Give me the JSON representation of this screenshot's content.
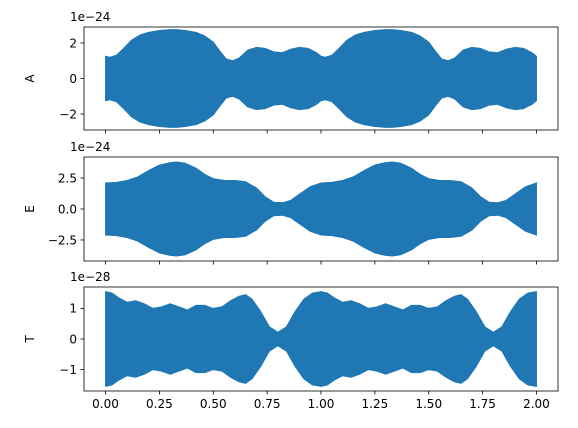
{
  "chart_data": [
    {
      "type": "area",
      "ylabel": "A",
      "offset_text": "1e−24",
      "xlim": [
        -0.1,
        2.1
      ],
      "ylim": [
        -2.9,
        2.9
      ],
      "x_ticks": [
        0.0,
        0.25,
        0.5,
        0.75,
        1.0,
        1.25,
        1.5,
        1.75,
        2.0
      ],
      "x_tick_labels": [],
      "y_ticks": [
        -2,
        0,
        2
      ],
      "y_tick_labels": [
        "−2",
        "0",
        "2"
      ],
      "fill_color": "#1f77b4",
      "envelope": {
        "x": [
          0.0,
          0.02,
          0.05,
          0.08,
          0.12,
          0.16,
          0.2,
          0.25,
          0.3,
          0.33,
          0.37,
          0.42,
          0.46,
          0.5,
          0.53,
          0.56,
          0.59,
          0.62,
          0.66,
          0.7,
          0.74,
          0.78,
          0.82,
          0.86,
          0.9,
          0.94,
          0.98,
          1.0,
          1.02,
          1.05,
          1.08,
          1.12,
          1.16,
          1.2,
          1.25,
          1.3,
          1.33,
          1.37,
          1.42,
          1.46,
          1.5,
          1.53,
          1.56,
          1.59,
          1.62,
          1.66,
          1.7,
          1.74,
          1.78,
          1.82,
          1.86,
          1.9,
          1.94,
          1.98,
          2.0
        ],
        "upper": [
          1.25,
          1.2,
          1.3,
          1.65,
          2.15,
          2.45,
          2.6,
          2.7,
          2.75,
          2.75,
          2.7,
          2.6,
          2.4,
          2.05,
          1.55,
          1.1,
          1.0,
          1.15,
          1.6,
          1.75,
          1.7,
          1.5,
          1.45,
          1.65,
          1.75,
          1.7,
          1.45,
          1.25,
          1.2,
          1.3,
          1.65,
          2.15,
          2.45,
          2.6,
          2.7,
          2.75,
          2.75,
          2.7,
          2.6,
          2.4,
          2.05,
          1.55,
          1.1,
          1.0,
          1.15,
          1.6,
          1.75,
          1.7,
          1.5,
          1.45,
          1.65,
          1.75,
          1.7,
          1.45,
          1.25
        ],
        "lower": [
          -1.25,
          -1.2,
          -1.3,
          -1.65,
          -2.15,
          -2.45,
          -2.6,
          -2.7,
          -2.75,
          -2.75,
          -2.7,
          -2.6,
          -2.4,
          -2.05,
          -1.55,
          -1.1,
          -1.0,
          -1.15,
          -1.6,
          -1.75,
          -1.7,
          -1.5,
          -1.45,
          -1.65,
          -1.75,
          -1.7,
          -1.45,
          -1.25,
          -1.2,
          -1.3,
          -1.65,
          -2.15,
          -2.45,
          -2.6,
          -2.7,
          -2.75,
          -2.75,
          -2.7,
          -2.6,
          -2.4,
          -2.05,
          -1.55,
          -1.1,
          -1.0,
          -1.15,
          -1.6,
          -1.75,
          -1.7,
          -1.5,
          -1.45,
          -1.65,
          -1.75,
          -1.7,
          -1.45,
          -1.25
        ]
      }
    },
    {
      "type": "area",
      "ylabel": "E",
      "offset_text": "1e−24",
      "xlim": [
        -0.1,
        2.1
      ],
      "ylim": [
        -4.2,
        4.2
      ],
      "x_ticks": [
        0.0,
        0.25,
        0.5,
        0.75,
        1.0,
        1.25,
        1.5,
        1.75,
        2.0
      ],
      "x_tick_labels": [],
      "y_ticks": [
        -2.5,
        0.0,
        2.5
      ],
      "y_tick_labels": [
        "−2.5",
        "0.0",
        "2.5"
      ],
      "fill_color": "#1f77b4",
      "envelope": {
        "x": [
          0.0,
          0.05,
          0.1,
          0.15,
          0.2,
          0.25,
          0.3,
          0.33,
          0.37,
          0.42,
          0.46,
          0.5,
          0.55,
          0.6,
          0.65,
          0.7,
          0.74,
          0.78,
          0.82,
          0.86,
          0.9,
          0.95,
          1.0,
          1.05,
          1.1,
          1.15,
          1.2,
          1.25,
          1.3,
          1.33,
          1.37,
          1.42,
          1.46,
          1.5,
          1.55,
          1.6,
          1.65,
          1.7,
          1.74,
          1.78,
          1.82,
          1.86,
          1.9,
          1.95,
          2.0
        ],
        "upper": [
          2.1,
          2.15,
          2.3,
          2.6,
          3.1,
          3.55,
          3.75,
          3.8,
          3.7,
          3.3,
          2.8,
          2.45,
          2.3,
          2.3,
          2.2,
          1.7,
          1.0,
          0.55,
          0.5,
          0.7,
          1.2,
          1.8,
          2.1,
          2.15,
          2.3,
          2.6,
          3.1,
          3.55,
          3.75,
          3.8,
          3.7,
          3.3,
          2.8,
          2.45,
          2.3,
          2.3,
          2.2,
          1.7,
          1.0,
          0.55,
          0.5,
          0.7,
          1.2,
          1.8,
          2.1
        ],
        "lower": [
          -2.1,
          -2.15,
          -2.3,
          -2.6,
          -3.1,
          -3.55,
          -3.75,
          -3.8,
          -3.7,
          -3.3,
          -2.8,
          -2.45,
          -2.3,
          -2.3,
          -2.2,
          -1.7,
          -1.0,
          -0.55,
          -0.5,
          -0.7,
          -1.2,
          -1.8,
          -2.1,
          -2.15,
          -2.3,
          -2.6,
          -3.1,
          -3.55,
          -3.75,
          -3.8,
          -3.7,
          -3.3,
          -2.8,
          -2.45,
          -2.3,
          -2.3,
          -2.2,
          -1.7,
          -1.0,
          -0.55,
          -0.5,
          -0.7,
          -1.2,
          -1.8,
          -2.1
        ]
      }
    },
    {
      "type": "area",
      "ylabel": "T",
      "offset_text": "1e−28",
      "xlim": [
        -0.1,
        2.1
      ],
      "ylim": [
        -1.7,
        1.7
      ],
      "x_ticks": [
        0.0,
        0.25,
        0.5,
        0.75,
        1.0,
        1.25,
        1.5,
        1.75,
        2.0
      ],
      "x_tick_labels": [
        "0.00",
        "0.25",
        "0.50",
        "0.75",
        "1.00",
        "1.25",
        "1.50",
        "1.75",
        "2.00"
      ],
      "y_ticks": [
        -1,
        0,
        1
      ],
      "y_tick_labels": [
        "−1",
        "0",
        "1"
      ],
      "fill_color": "#1f77b4",
      "envelope": {
        "x": [
          0.0,
          0.03,
          0.06,
          0.1,
          0.14,
          0.18,
          0.22,
          0.26,
          0.3,
          0.34,
          0.38,
          0.42,
          0.46,
          0.5,
          0.54,
          0.58,
          0.62,
          0.65,
          0.68,
          0.72,
          0.76,
          0.8,
          0.84,
          0.88,
          0.92,
          0.96,
          1.0,
          1.03,
          1.06,
          1.1,
          1.14,
          1.18,
          1.22,
          1.26,
          1.3,
          1.34,
          1.38,
          1.42,
          1.46,
          1.5,
          1.54,
          1.58,
          1.62,
          1.65,
          1.68,
          1.72,
          1.76,
          1.8,
          1.84,
          1.88,
          1.92,
          1.96,
          2.0
        ],
        "upper": [
          1.55,
          1.5,
          1.35,
          1.2,
          1.25,
          1.15,
          1.0,
          1.05,
          1.15,
          1.05,
          0.95,
          1.1,
          1.1,
          1.0,
          1.05,
          1.25,
          1.4,
          1.45,
          1.3,
          0.9,
          0.4,
          0.22,
          0.4,
          0.9,
          1.3,
          1.5,
          1.55,
          1.5,
          1.35,
          1.2,
          1.25,
          1.15,
          1.0,
          1.05,
          1.15,
          1.05,
          0.95,
          1.1,
          1.1,
          1.0,
          1.05,
          1.25,
          1.4,
          1.45,
          1.3,
          0.9,
          0.4,
          0.22,
          0.4,
          0.9,
          1.3,
          1.5,
          1.55
        ],
        "lower": [
          -1.55,
          -1.5,
          -1.35,
          -1.2,
          -1.25,
          -1.15,
          -1.0,
          -1.05,
          -1.15,
          -1.05,
          -0.95,
          -1.1,
          -1.1,
          -1.0,
          -1.05,
          -1.25,
          -1.4,
          -1.45,
          -1.3,
          -0.9,
          -0.4,
          -0.22,
          -0.4,
          -0.9,
          -1.3,
          -1.5,
          -1.55,
          -1.5,
          -1.35,
          -1.2,
          -1.25,
          -1.15,
          -1.0,
          -1.05,
          -1.15,
          -1.05,
          -0.95,
          -1.1,
          -1.1,
          -1.0,
          -1.05,
          -1.25,
          -1.4,
          -1.45,
          -1.3,
          -0.9,
          -0.4,
          -0.22,
          -0.4,
          -0.9,
          -1.3,
          -1.5,
          -1.55
        ]
      }
    }
  ]
}
